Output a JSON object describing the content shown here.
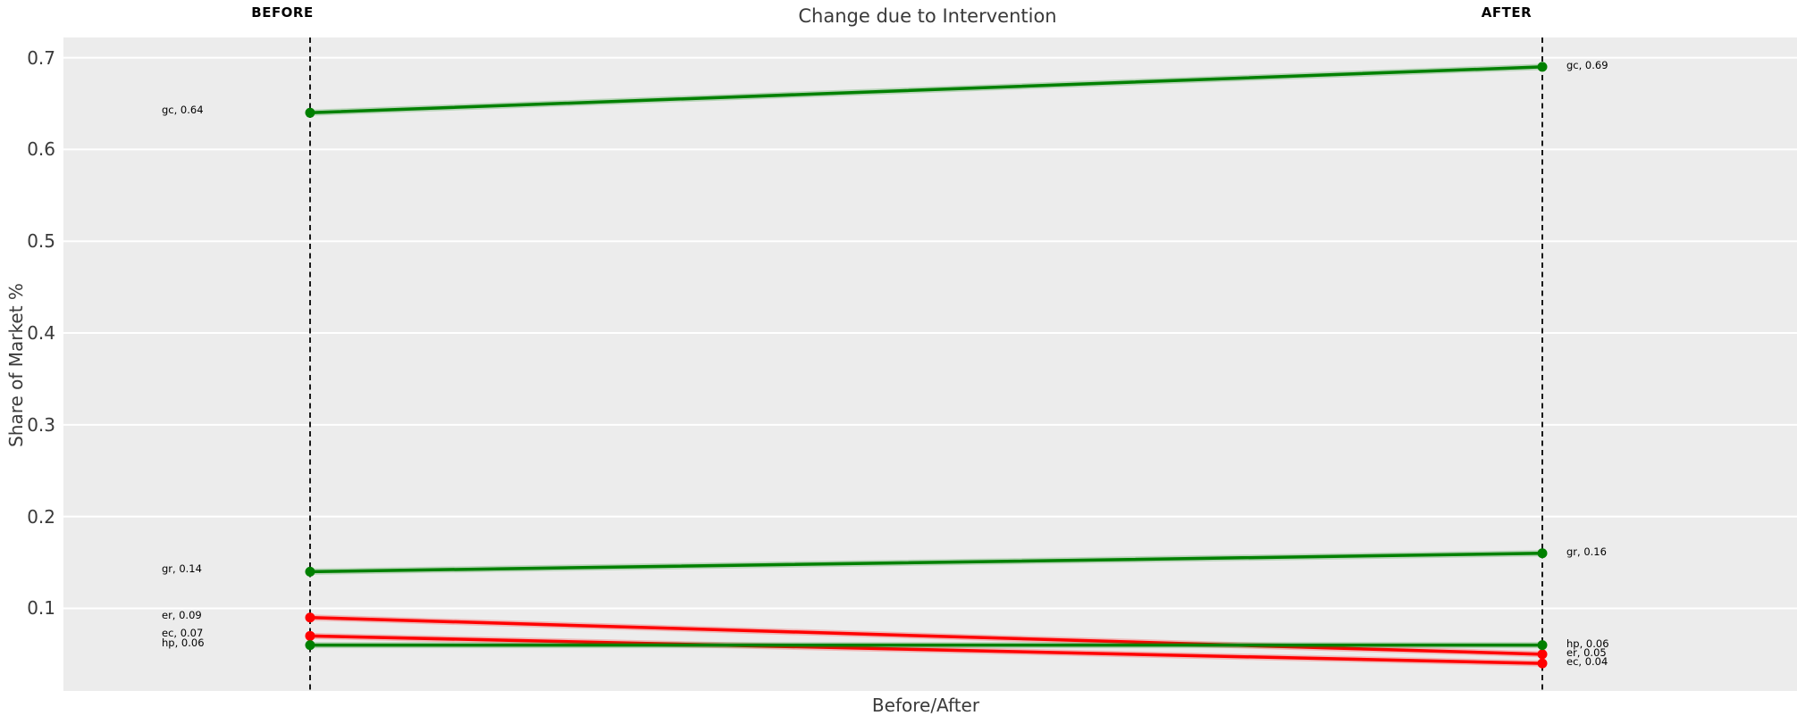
{
  "chart_data": {
    "type": "line",
    "variant": "slopegraph",
    "title": "Change due to Intervention",
    "xlabel": "Before/After",
    "ylabel": "Share of Market %",
    "categories": [
      "BEFORE",
      "AFTER"
    ],
    "series": [
      {
        "name": "gc",
        "values": [
          0.64,
          0.69
        ],
        "color": "#008000",
        "label_before": "gc, 0.64",
        "label_after": "gc, 0.69"
      },
      {
        "name": "gr",
        "values": [
          0.14,
          0.16
        ],
        "color": "#008000",
        "label_before": "gr, 0.14",
        "label_after": "gr, 0.16"
      },
      {
        "name": "er",
        "values": [
          0.09,
          0.05
        ],
        "color": "#ff0000",
        "label_before": "er, 0.09",
        "label_after": "er, 0.05"
      },
      {
        "name": "ec",
        "values": [
          0.07,
          0.04
        ],
        "color": "#ff0000",
        "label_before": "ec, 0.07",
        "label_after": "ec, 0.04"
      },
      {
        "name": "hp",
        "values": [
          0.06,
          0.06
        ],
        "color": "#008000",
        "label_before": "hp, 0.06",
        "label_after": "hp, 0.06"
      }
    ],
    "yticks": [
      0.1,
      0.2,
      0.3,
      0.4,
      0.5,
      0.6,
      0.7
    ],
    "ytick_labels": [
      "0.1",
      "0.2",
      "0.3",
      "0.4",
      "0.5",
      "0.6",
      "0.7"
    ],
    "ylim": [
      0.01,
      0.722
    ],
    "grid": "horizontal",
    "legend": false,
    "guide_lines": {
      "style": "dashed",
      "color": "#000000",
      "at": [
        "BEFORE",
        "AFTER"
      ]
    }
  },
  "colors": {
    "increase": "#008000",
    "decrease": "#ff0000",
    "plot_background": "#ececec",
    "gridline": "#ffffff",
    "text": "#3a3a3a"
  }
}
